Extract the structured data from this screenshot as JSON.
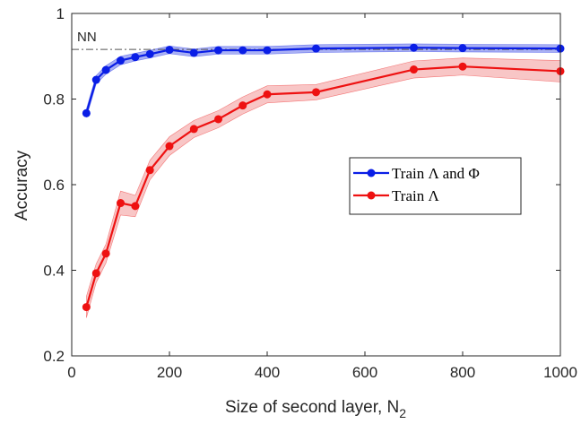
{
  "chart_data": {
    "type": "line",
    "xlabel": "Size of second layer, N",
    "xlabel_subscript": "2",
    "ylabel": "Accuracy",
    "xlim": [
      0,
      1000
    ],
    "ylim": [
      0.2,
      1.0
    ],
    "xticks": [
      0,
      200,
      400,
      600,
      800,
      1000
    ],
    "yticks": [
      0.2,
      0.4,
      0.6,
      0.8,
      1.0
    ],
    "xtick_labels": [
      "0",
      "200",
      "400",
      "600",
      "800",
      "1000"
    ],
    "ytick_labels": [
      "0.2",
      "0.4",
      "0.6",
      "0.8",
      "1"
    ],
    "grid": false,
    "legend_position": "center-right",
    "reference_line": {
      "label": "NN",
      "y": 0.916,
      "color": "#555555",
      "style": "dash-dot"
    },
    "series": [
      {
        "name": "Train Λ and Φ",
        "color": "#0a1ee6",
        "band_color": "#8c96f0",
        "x": [
          30,
          50,
          70,
          100,
          130,
          160,
          200,
          250,
          300,
          350,
          400,
          500,
          700,
          800,
          1000
        ],
        "y": [
          0.767,
          0.845,
          0.868,
          0.89,
          0.898,
          0.905,
          0.915,
          0.908,
          0.914,
          0.914,
          0.914,
          0.918,
          0.92,
          0.919,
          0.918
        ],
        "band": [
          0.01,
          0.01,
          0.01,
          0.01,
          0.009,
          0.009,
          0.009,
          0.009,
          0.009,
          0.009,
          0.009,
          0.009,
          0.009,
          0.009,
          0.009
        ]
      },
      {
        "name": "Train Λ",
        "color": "#ee1111",
        "band_color": "#f6b3b3",
        "x": [
          30,
          50,
          70,
          100,
          130,
          160,
          200,
          250,
          300,
          350,
          400,
          500,
          700,
          800,
          1000
        ],
        "y": [
          0.314,
          0.393,
          0.439,
          0.557,
          0.55,
          0.634,
          0.69,
          0.73,
          0.753,
          0.785,
          0.811,
          0.816,
          0.869,
          0.876,
          0.865
        ],
        "band": [
          0.025,
          0.022,
          0.022,
          0.028,
          0.025,
          0.023,
          0.022,
          0.02,
          0.02,
          0.02,
          0.02,
          0.018,
          0.02,
          0.02,
          0.025
        ]
      }
    ]
  }
}
